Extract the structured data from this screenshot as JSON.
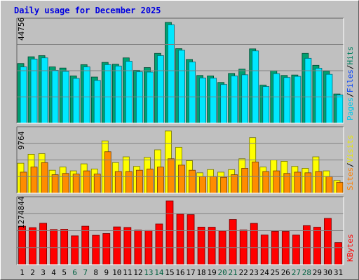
{
  "title": "Daily usage for December 2025",
  "panels": {
    "hits": {
      "max_label": "44756",
      "legend": [
        {
          "text": "Pages",
          "color": "#00c8e8"
        },
        {
          "text": "Files",
          "color": "#0040ff"
        },
        {
          "text": "Hits",
          "color": "#008060"
        }
      ]
    },
    "visits": {
      "max_label": "9764",
      "legend": [
        {
          "text": "Sites",
          "color": "#ff8000"
        },
        {
          "text": "Visits",
          "color": "#e8e800"
        }
      ]
    },
    "kbytes": {
      "max_label": "1274844",
      "legend": [
        {
          "text": "KBytes",
          "color": "#ff0000"
        }
      ]
    }
  },
  "colors": {
    "background": "#c0c0c0",
    "plot_bg": "#c0c0c0",
    "grid": "#808080",
    "hits": "#00a070",
    "files": "#00e8ff",
    "visits": "#ffff00",
    "sites": "#ff8c00",
    "kbytes": "#ff0000",
    "weekday": "#000000",
    "weekend": "#006040"
  },
  "chart_data": [
    {
      "type": "bar",
      "title": "Daily usage for December 2025",
      "panel": "hits",
      "ylim": [
        0,
        44756
      ],
      "x": [
        1,
        2,
        3,
        4,
        5,
        6,
        7,
        8,
        9,
        10,
        11,
        12,
        13,
        14,
        15,
        16,
        17,
        18,
        19,
        20,
        21,
        22,
        23,
        24,
        25,
        26,
        27,
        28,
        29,
        30,
        31
      ],
      "series": [
        {
          "name": "Hits",
          "values": [
            26500,
            29500,
            30000,
            25000,
            24500,
            21000,
            26000,
            20500,
            27000,
            26200,
            29000,
            23500,
            24700,
            31000,
            44756,
            33100,
            28300,
            21200,
            21000,
            18100,
            22100,
            24000,
            33000,
            16900,
            23300,
            21200,
            21400,
            31000,
            25700,
            23100,
            13000
          ]
        },
        {
          "name": "Files",
          "values": [
            25000,
            28500,
            29000,
            23500,
            23000,
            19900,
            25000,
            19000,
            26000,
            25400,
            27500,
            22800,
            22700,
            30000,
            43700,
            32400,
            27200,
            20100,
            20000,
            17200,
            21000,
            21500,
            32100,
            16300,
            22000,
            20300,
            20800,
            28800,
            24400,
            21700,
            12500
          ]
        }
      ]
    },
    {
      "type": "bar",
      "panel": "visits",
      "ylim": [
        0,
        9764
      ],
      "x": [
        1,
        2,
        3,
        4,
        5,
        6,
        7,
        8,
        9,
        10,
        11,
        12,
        13,
        14,
        15,
        16,
        17,
        18,
        19,
        20,
        21,
        22,
        23,
        24,
        25,
        26,
        27,
        28,
        29,
        30,
        31
      ],
      "series": [
        {
          "name": "Visits",
          "values": [
            4700,
            6100,
            6200,
            3600,
            4100,
            3500,
            4600,
            3800,
            8200,
            4800,
            5700,
            4200,
            5600,
            6800,
            9764,
            7200,
            5100,
            3200,
            3700,
            3300,
            3700,
            5400,
            8700,
            4100,
            5200,
            5000,
            4200,
            3900,
            5700,
            3500,
            2000
          ]
        },
        {
          "name": "Sites",
          "values": [
            3300,
            4100,
            4800,
            2900,
            3100,
            3000,
            3500,
            3000,
            6500,
            3400,
            3400,
            3600,
            3800,
            4100,
            5400,
            4400,
            3600,
            2600,
            2600,
            2500,
            2900,
            3900,
            4900,
            3400,
            3500,
            3100,
            3300,
            3200,
            3400,
            2600,
            1700
          ]
        }
      ]
    },
    {
      "type": "bar",
      "panel": "kbytes",
      "ylim": [
        0,
        1274844
      ],
      "x": [
        1,
        2,
        3,
        4,
        5,
        6,
        7,
        8,
        9,
        10,
        11,
        12,
        13,
        14,
        15,
        16,
        17,
        18,
        19,
        20,
        21,
        22,
        23,
        24,
        25,
        26,
        27,
        28,
        29,
        30,
        31
      ],
      "series": [
        {
          "name": "KBytes",
          "values": [
            768000,
            740000,
            827000,
            702000,
            707000,
            576000,
            769000,
            587000,
            623000,
            755000,
            744000,
            690000,
            683000,
            813000,
            1274844,
            1010000,
            1000000,
            751000,
            749000,
            674000,
            903000,
            693000,
            825000,
            592000,
            666000,
            665000,
            591000,
            780000,
            749000,
            925000,
            440000
          ]
        }
      ]
    }
  ]
}
